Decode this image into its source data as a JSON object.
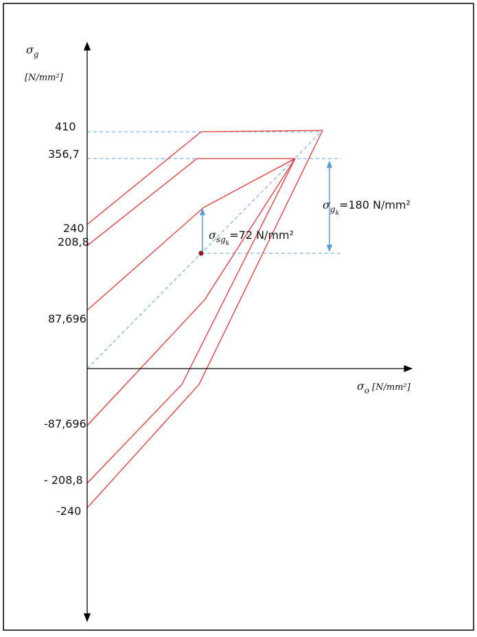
{
  "y_axis": {
    "symbol": "σ",
    "subscript": "g",
    "unit": "[N/mm²]"
  },
  "x_axis": {
    "symbol": "σ",
    "subscript": "o",
    "unit": "[N/mm²]"
  },
  "y_labels": [
    "410",
    "356,7",
    "240",
    "208,8",
    "87,696",
    "-87,696",
    "- 208,8",
    "-240"
  ],
  "annotations": [
    {
      "symbol": "σ",
      "subscript": "g",
      "subsubscript": "k",
      "text": "=180 N/mm²"
    },
    {
      "symbol": "σ",
      "subscript": "sg",
      "subsubscript": "k",
      "text": "=72 N/mm²"
    }
  ]
}
